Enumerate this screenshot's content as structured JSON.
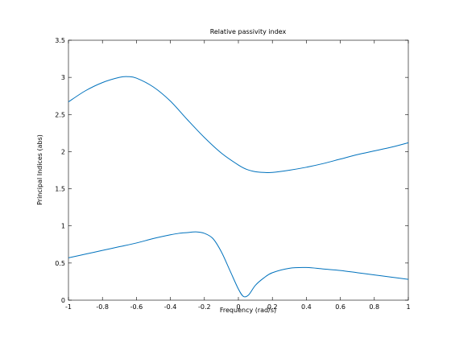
{
  "chart_data": {
    "type": "line",
    "title": "Relative passivity index",
    "xlabel": "Frequency (rad/s)",
    "ylabel": "Principal Indices (abs)",
    "xlim": [
      -1,
      1
    ],
    "ylim": [
      0,
      3.5
    ],
    "xticks": [
      "-1",
      "-0.8",
      "-0.6",
      "-0.4",
      "-0.2",
      "0",
      "0.2",
      "0.4",
      "0.6",
      "0.8",
      "1"
    ],
    "yticks": [
      "0",
      "0.5",
      "1",
      "1.5",
      "2",
      "2.5",
      "3",
      "3.5"
    ],
    "grid": false,
    "line_color": "#0072bd",
    "series": [
      {
        "x": [
          -1.0,
          -0.9,
          -0.8,
          -0.7,
          -0.65,
          -0.6,
          -0.5,
          -0.4,
          -0.3,
          -0.2,
          -0.1,
          0.0,
          0.05,
          0.1,
          0.15,
          0.2,
          0.3,
          0.4,
          0.5,
          0.6,
          0.7,
          0.8,
          0.9,
          1.0
        ],
        "y": [
          2.67,
          2.82,
          2.93,
          3.0,
          3.01,
          2.99,
          2.87,
          2.68,
          2.43,
          2.19,
          1.98,
          1.82,
          1.76,
          1.73,
          1.72,
          1.72,
          1.75,
          1.79,
          1.84,
          1.9,
          1.96,
          2.01,
          2.06,
          2.12
        ]
      },
      {
        "x": [
          -1.0,
          -0.9,
          -0.8,
          -0.7,
          -0.6,
          -0.5,
          -0.4,
          -0.35,
          -0.3,
          -0.25,
          -0.2,
          -0.15,
          -0.1,
          -0.05,
          0.0,
          0.03,
          0.06,
          0.1,
          0.15,
          0.2,
          0.3,
          0.4,
          0.5,
          0.6,
          0.7,
          0.8,
          0.9,
          1.0
        ],
        "y": [
          0.57,
          0.62,
          0.67,
          0.72,
          0.77,
          0.83,
          0.88,
          0.9,
          0.91,
          0.92,
          0.9,
          0.83,
          0.65,
          0.4,
          0.15,
          0.05,
          0.07,
          0.2,
          0.3,
          0.37,
          0.43,
          0.44,
          0.42,
          0.4,
          0.37,
          0.34,
          0.31,
          0.28
        ]
      }
    ]
  }
}
